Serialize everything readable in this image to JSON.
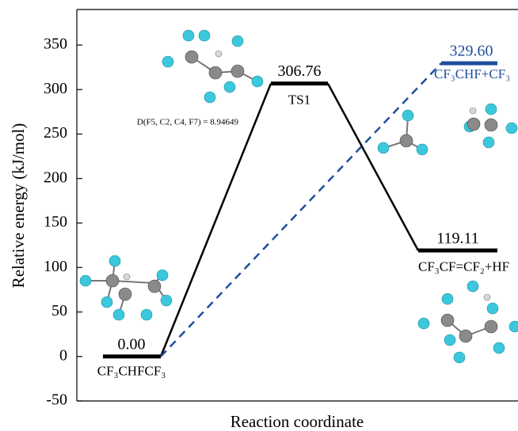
{
  "chart_data": {
    "type": "energy",
    "y_label": "Relative energy (kJ/mol)",
    "x_label": "Reaction coordinate",
    "ylim": [
      -50,
      390
    ],
    "yticks": [
      -50,
      0,
      50,
      100,
      150,
      200,
      250,
      300,
      350
    ],
    "levels": [
      {
        "label": "CF₃CHFCF₃",
        "value": 0,
        "value_label": "0.00",
        "color": "#000000"
      },
      {
        "label": "TS1",
        "value": 306.76,
        "color": "#000000"
      },
      {
        "label": "CF₃CF=CF₂+HF",
        "value": 119.11,
        "color": "#000000"
      },
      {
        "label": "CF₃CHF+CF₃",
        "value": 329.6,
        "value_label": "329.60",
        "color": "#1f4e9c"
      }
    ],
    "annotations": [
      "D(F5, C2, C4, F7) = 8.94649"
    ]
  }
}
